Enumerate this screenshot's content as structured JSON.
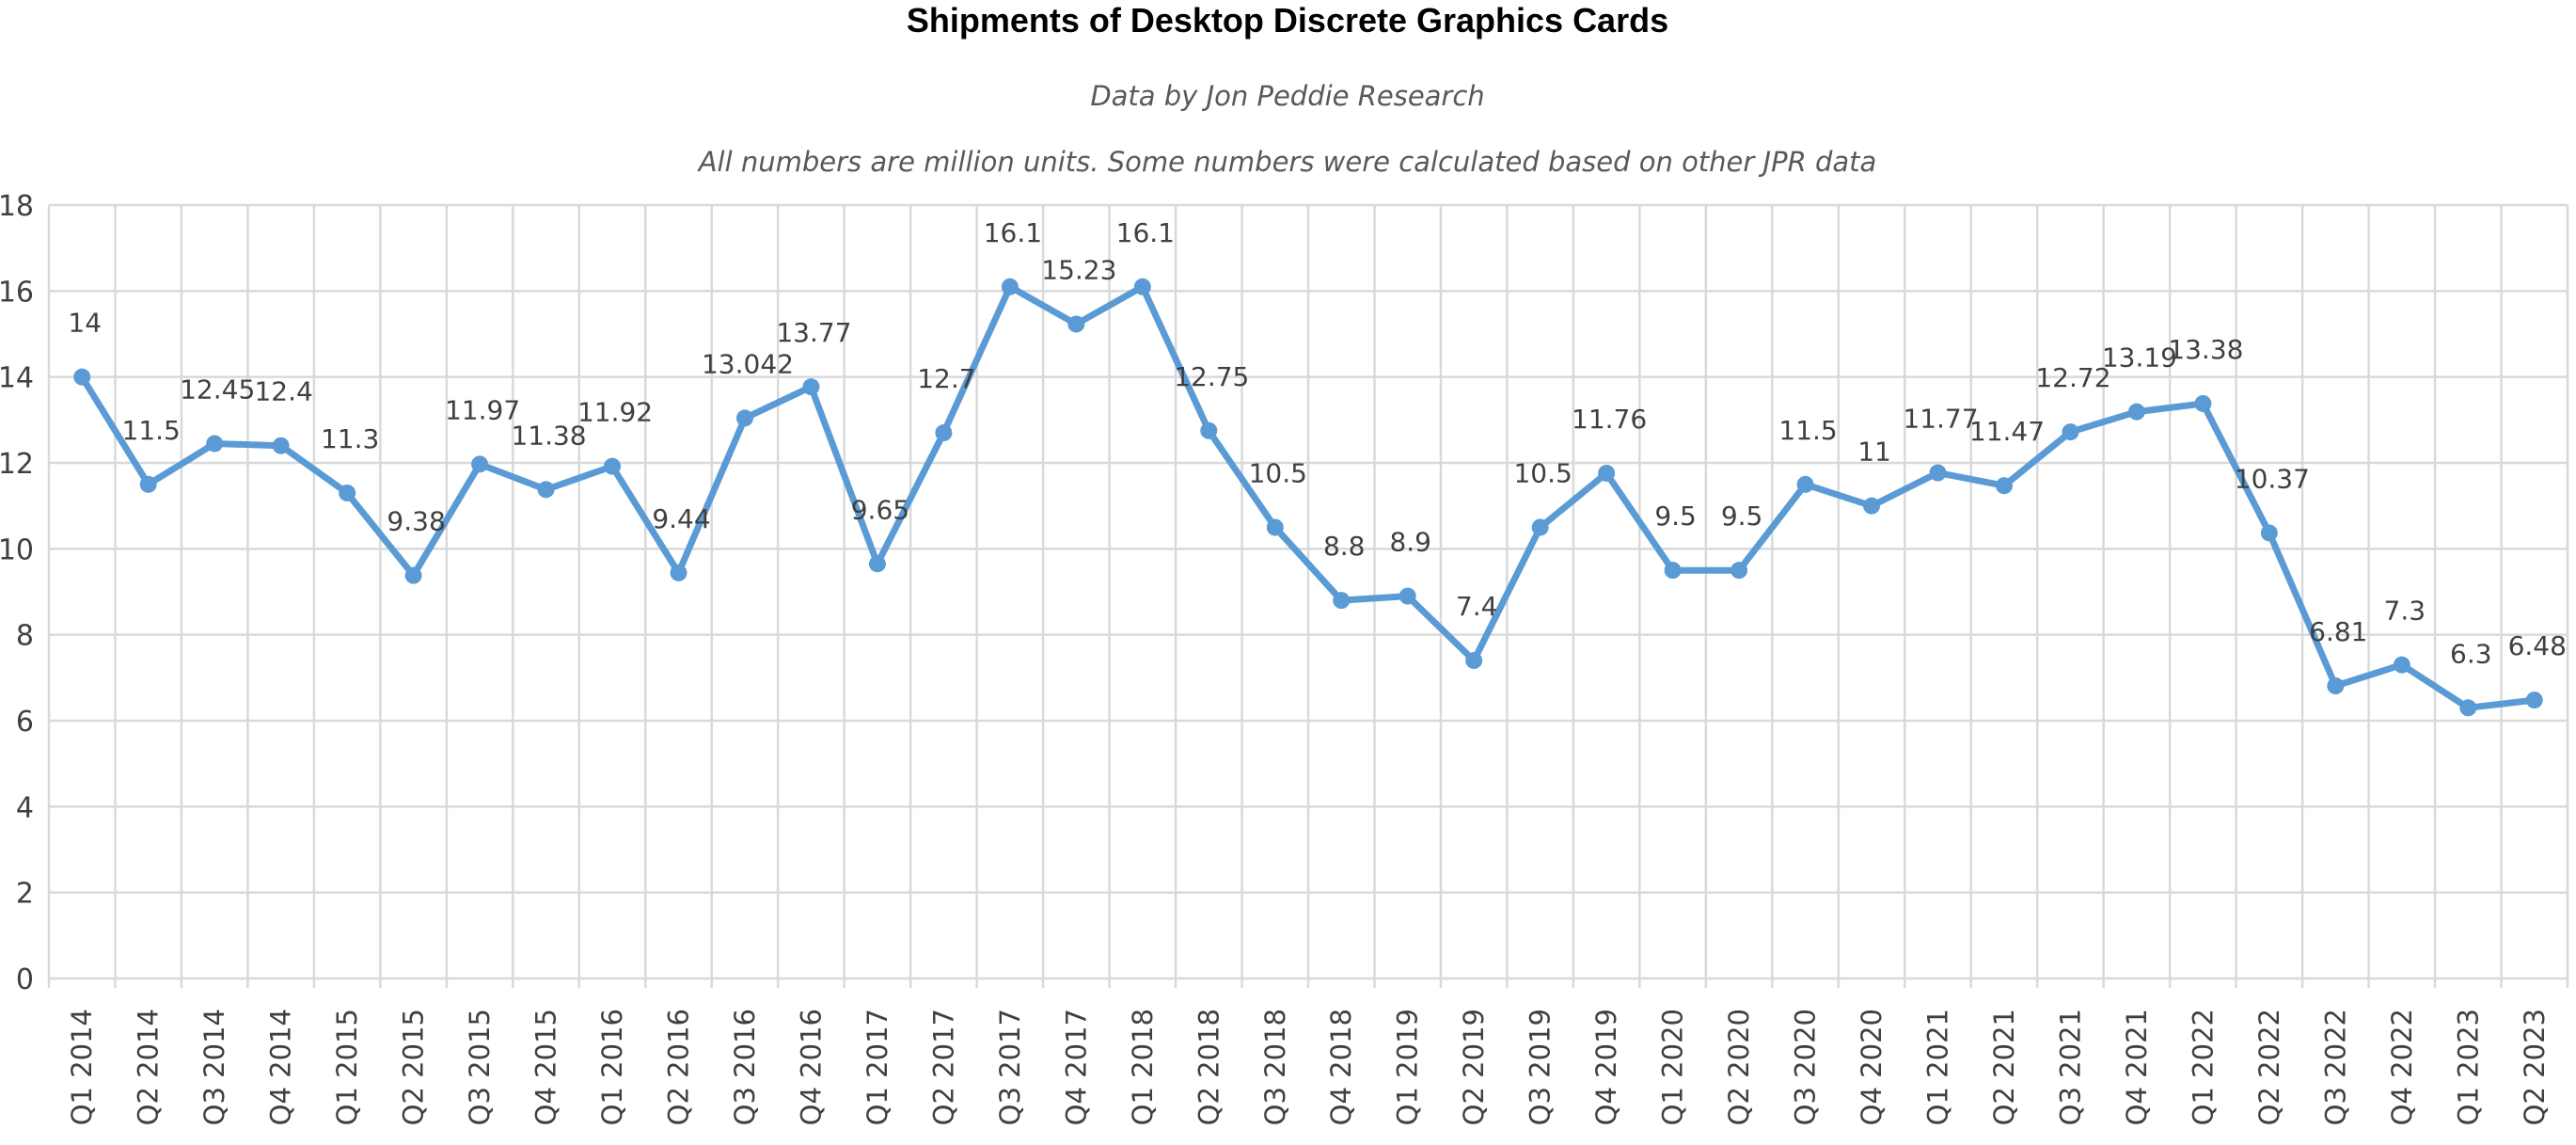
{
  "chart_data": {
    "type": "line",
    "title": "Shipments of Desktop Discrete Graphics Cards",
    "subtitles": [
      "Data by Jon Peddie Research",
      "All numbers are million units. Some numbers were calculated based on other JPR data"
    ],
    "xlabel": "",
    "ylabel": "",
    "ylim": [
      0,
      18
    ],
    "yticks": [
      0,
      2,
      4,
      6,
      8,
      10,
      12,
      14,
      16,
      18
    ],
    "grid": "both",
    "legend": "none",
    "line_color": "#5b9bd5",
    "categories": [
      "Q1 2014",
      "Q2 2014",
      "Q3 2014",
      "Q4 2014",
      "Q1 2015",
      "Q2 2015",
      "Q3 2015",
      "Q4 2015",
      "Q1 2016",
      "Q2 2016",
      "Q3 2016",
      "Q4 2016",
      "Q1 2017",
      "Q2 2017",
      "Q3 2017",
      "Q4 2017",
      "Q1 2018",
      "Q2 2018",
      "Q3 2018",
      "Q4 2018",
      "Q1 2019",
      "Q2 2019",
      "Q3 2019",
      "Q4 2019",
      "Q1 2020",
      "Q2 2020",
      "Q3 2020",
      "Q4 2020",
      "Q1 2021",
      "Q2 2021",
      "Q3 2021",
      "Q4 2021",
      "Q1 2022",
      "Q2 2022",
      "Q3 2022",
      "Q4 2022",
      "Q1 2023",
      "Q2 2023"
    ],
    "values": [
      14,
      11.5,
      12.45,
      12.4,
      11.3,
      9.38,
      11.97,
      11.38,
      11.92,
      9.44,
      13.042,
      13.77,
      9.65,
      12.7,
      16.1,
      15.23,
      16.1,
      12.75,
      10.5,
      8.8,
      8.9,
      7.4,
      10.5,
      11.76,
      9.5,
      9.5,
      11.5,
      11,
      11.77,
      11.47,
      12.72,
      13.19,
      13.38,
      10.37,
      6.81,
      7.3,
      6.3,
      6.48
    ]
  }
}
